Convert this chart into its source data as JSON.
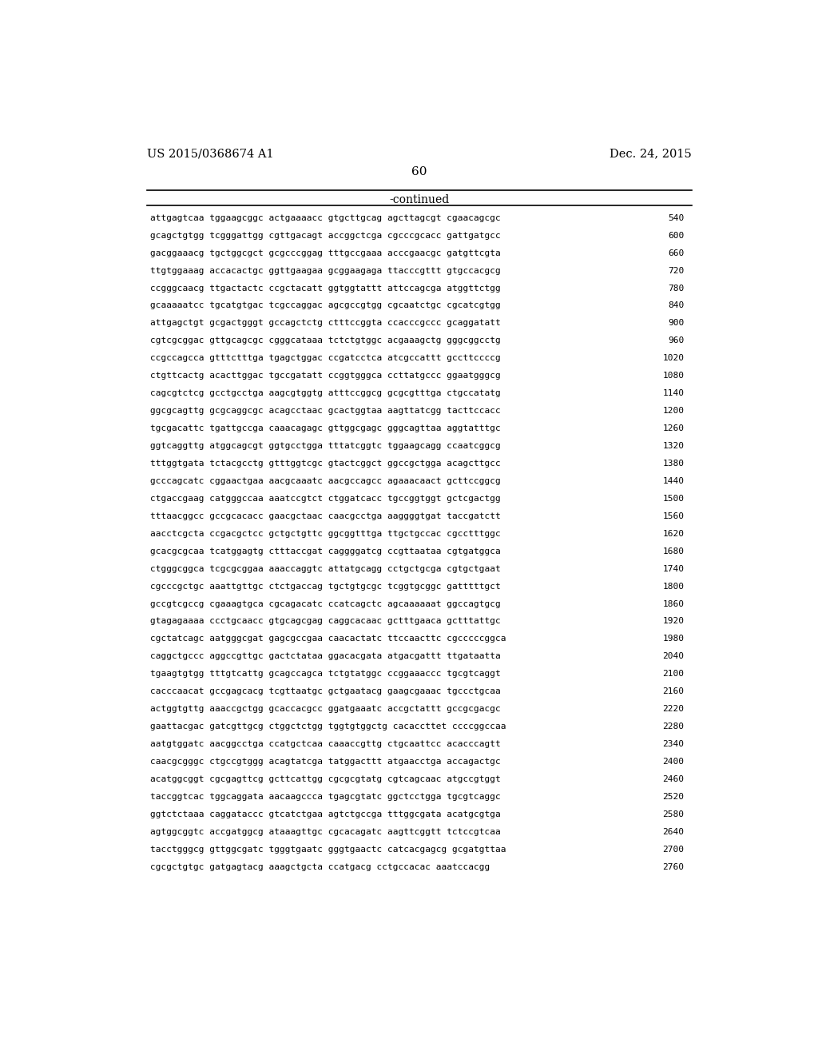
{
  "header_left": "US 2015/0368674 A1",
  "header_right": "Dec. 24, 2015",
  "page_number": "60",
  "continued_label": "-continued",
  "background_color": "#ffffff",
  "text_color": "#000000",
  "sequence_lines": [
    [
      "attgagtcaa tggaagcggc actgaaaacc gtgcttgcag agcttagcgt cgaacagcgc",
      "540"
    ],
    [
      "gcagctgtgg tcgggattgg cgttgacagt accggctcga cgcccgcacc gattgatgcc",
      "600"
    ],
    [
      "gacggaaacg tgctggcgct gcgcccggag tttgccgaaa acccgaacgc gatgttcgta",
      "660"
    ],
    [
      "ttgtggaaag accacactgc ggttgaagaa gcggaagaga ttacccgttt gtgccacgcg",
      "720"
    ],
    [
      "ccgggcaacg ttgactactc ccgctacatt ggtggtattt attccagcga atggttctgg",
      "780"
    ],
    [
      "gcaaaaatcc tgcatgtgac tcgccaggac agcgccgtgg cgcaatctgc cgcatcgtgg",
      "840"
    ],
    [
      "attgagctgt gcgactgggt gccagctctg ctttccggta ccacccgccc gcaggatatt",
      "900"
    ],
    [
      "cgtcgcggac gttgcagcgc cgggcataaa tctctgtggc acgaaagctg gggcggcctg",
      "960"
    ],
    [
      "ccgccagcca gtttctttga tgagctggac ccgatcctca atcgccattt gccttccccg",
      "1020"
    ],
    [
      "ctgttcactg acacttggac tgccgatatt ccggtgggca ccttatgccc ggaatgggcg",
      "1080"
    ],
    [
      "cagcgtctcg gcctgcctga aagcgtggtg atttccggcg gcgcgtttga ctgccatatg",
      "1140"
    ],
    [
      "ggcgcagttg gcgcaggcgc acagcctaac gcactggtaa aagttatcgg tacttccacc",
      "1200"
    ],
    [
      "tgcgacattc tgattgccga caaacagagc gttggcgagc gggcagttaa aggtatttgc",
      "1260"
    ],
    [
      "ggtcaggttg atggcagcgt ggtgcctgga tttatcggtc tggaagcagg ccaatcggcg",
      "1320"
    ],
    [
      "tttggtgata tctacgcctg gtttggtcgc gtactcggct ggccgctgga acagcttgcc",
      "1380"
    ],
    [
      "gcccagcatc cggaactgaa aacgcaaatc aacgccagcc agaaacaact gcttccggcg",
      "1440"
    ],
    [
      "ctgaccgaag catgggccaa aaatccgtct ctggatcacc tgccggtggt gctcgactgg",
      "1500"
    ],
    [
      "tttaacggcc gccgcacacc gaacgctaac caacgcctga aaggggtgat taccgatctt",
      "1560"
    ],
    [
      "aacctcgcta ccgacgctcc gctgctgttc ggcggtttga ttgctgccac cgcctttggc",
      "1620"
    ],
    [
      "gcacgcgcaa tcatggagtg ctttaccgat caggggatcg ccgttaataa cgtgatggca",
      "1680"
    ],
    [
      "ctgggcggca tcgcgcggaa aaaccaggtc attatgcagg cctgctgcga cgtgctgaat",
      "1740"
    ],
    [
      "cgcccgctgc aaattgttgc ctctgaccag tgctgtgcgc tcggtgcggc gatttttgct",
      "1800"
    ],
    [
      "gccgtcgccg cgaaagtgca cgcagacatc ccatcagctc agcaaaaaat ggccagtgcg",
      "1860"
    ],
    [
      "gtagagaaaa ccctgcaacc gtgcagcgag caggcacaac gctttgaaca gctttattgc",
      "1920"
    ],
    [
      "cgctatcagc aatgggcgat gagcgccgaa caacactatc ttccaacttc cgcccccggca",
      "1980"
    ],
    [
      "caggctgccc aggccgttgc gactctataa ggacacgata atgacgattt ttgataatta",
      "2040"
    ],
    [
      "tgaagtgtgg tttgtcattg gcagccagca tctgtatggc ccggaaaccc tgcgtcaggt",
      "2100"
    ],
    [
      "cacccaacat gccgagcacg tcgttaatgc gctgaatacg gaagcgaaac tgccctgcaa",
      "2160"
    ],
    [
      "actggtgttg aaaccgctgg gcaccacgcc ggatgaaatc accgctattt gccgcgacgc",
      "2220"
    ],
    [
      "gaattacgac gatcgttgcg ctggctctgg tggtgtggctg cacaccttet ccccggccaa",
      "2280"
    ],
    [
      "aatgtggatc aacggcctga ccatgctcaa caaaccgttg ctgcaattcc acacccagtt",
      "2340"
    ],
    [
      "caacgcgggc ctgccgtggg acagtatcga tatggacttt atgaacctga accagactgc",
      "2400"
    ],
    [
      "acatggcggt cgcgagttcg gcttcattgg cgcgcgtatg cgtcagcaac atgccgtggt",
      "2460"
    ],
    [
      "taccggtcac tggcaggata aacaagccca tgagcgtatc ggctcctgga tgcgtcaggc",
      "2520"
    ],
    [
      "ggtctctaaa caggataccc gtcatctgaa agtctgccga tttggcgata acatgcgtga",
      "2580"
    ],
    [
      "agtggcggtc accgatggcg ataaagttgc cgcacagatc aagttcggtt tctccgtcaa",
      "2640"
    ],
    [
      "tacctgggcg gttggcgatc tgggtgaatc gggtgaactc catcacgagcg gcgatgttaa",
      "2700"
    ],
    [
      "cgcgctgtgc gatgagtacg aaagctgcta ccatgacg cctgccacac aaatccacgg",
      "2760"
    ]
  ]
}
